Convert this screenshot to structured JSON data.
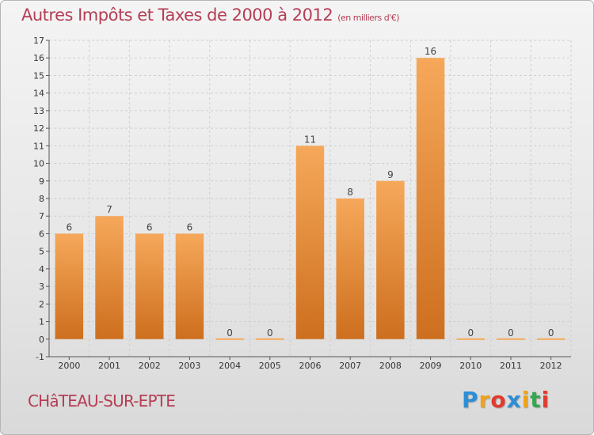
{
  "header": {
    "title": "Autres Impôts et Taxes de 2000 à 2012",
    "unit": "(en milliers d'€)"
  },
  "commune": "CHâTEAU-SUR-EPTE",
  "logo": {
    "letters": [
      "P",
      "r",
      "o",
      "x",
      "i",
      "t",
      "i"
    ],
    "colors": [
      "#2c8ed6",
      "#f0a21c",
      "#e23a2e",
      "#2c8ed6",
      "#f0a21c",
      "#35a84c",
      "#e23a2e"
    ]
  },
  "colors": {
    "bar_top": "#f6a85a",
    "bar_bottom": "#cd6f1e",
    "grid": "#cfcfcf",
    "axis": "#555555",
    "title": "#b43e55"
  },
  "chart_data": {
    "type": "bar",
    "categories": [
      "2000",
      "2001",
      "2002",
      "2003",
      "2004",
      "2005",
      "2006",
      "2007",
      "2008",
      "2009",
      "2010",
      "2011",
      "2012"
    ],
    "values": [
      6,
      7,
      6,
      6,
      0,
      0,
      11,
      8,
      9,
      16,
      0,
      0,
      0
    ],
    "data_labels": [
      "6",
      "7",
      "6",
      "6",
      "0",
      "0",
      "11",
      "8",
      "9",
      "16",
      "0",
      "0",
      "0"
    ],
    "yticks": [
      "-1",
      "0",
      "1",
      "2",
      "3",
      "4",
      "5",
      "6",
      "7",
      "8",
      "9",
      "10",
      "11",
      "12",
      "13",
      "14",
      "15",
      "16",
      "17"
    ],
    "ylim": [
      -1,
      17
    ],
    "grid": true,
    "title": "Autres Impôts et Taxes de 2000 à 2012",
    "ylabel": "(en milliers d'€)",
    "xlabel": ""
  }
}
